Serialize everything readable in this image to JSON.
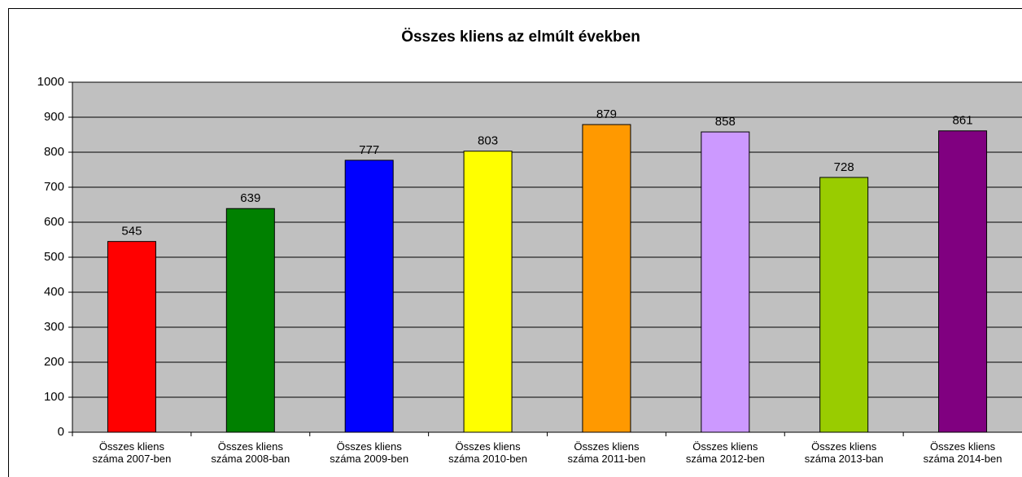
{
  "chart_data": {
    "type": "bar",
    "title": "Összes kliens az elmúlt években",
    "categories": [
      "Összes kliens száma 2007-ben",
      "Összes kliens száma 2008-ban",
      "Összes kliens száma 2009-ben",
      "Összes kliens száma 2010-ben",
      "Összes kliens száma 2011-ben",
      "Összes kliens száma 2012-ben",
      "Összes kliens száma 2013-ban",
      "Összes kliens száma 2014-ben"
    ],
    "values": [
      545,
      639,
      777,
      803,
      879,
      858,
      728,
      861
    ],
    "colors": [
      "#ff0000",
      "#008000",
      "#0000ff",
      "#ffff00",
      "#ff9900",
      "#cc99ff",
      "#99cc00",
      "#800080"
    ],
    "ylim": [
      0,
      1000
    ],
    "yticks": [
      0,
      100,
      200,
      300,
      400,
      500,
      600,
      700,
      800,
      900,
      1000
    ],
    "grid": true,
    "background": "#c0c0c0"
  }
}
